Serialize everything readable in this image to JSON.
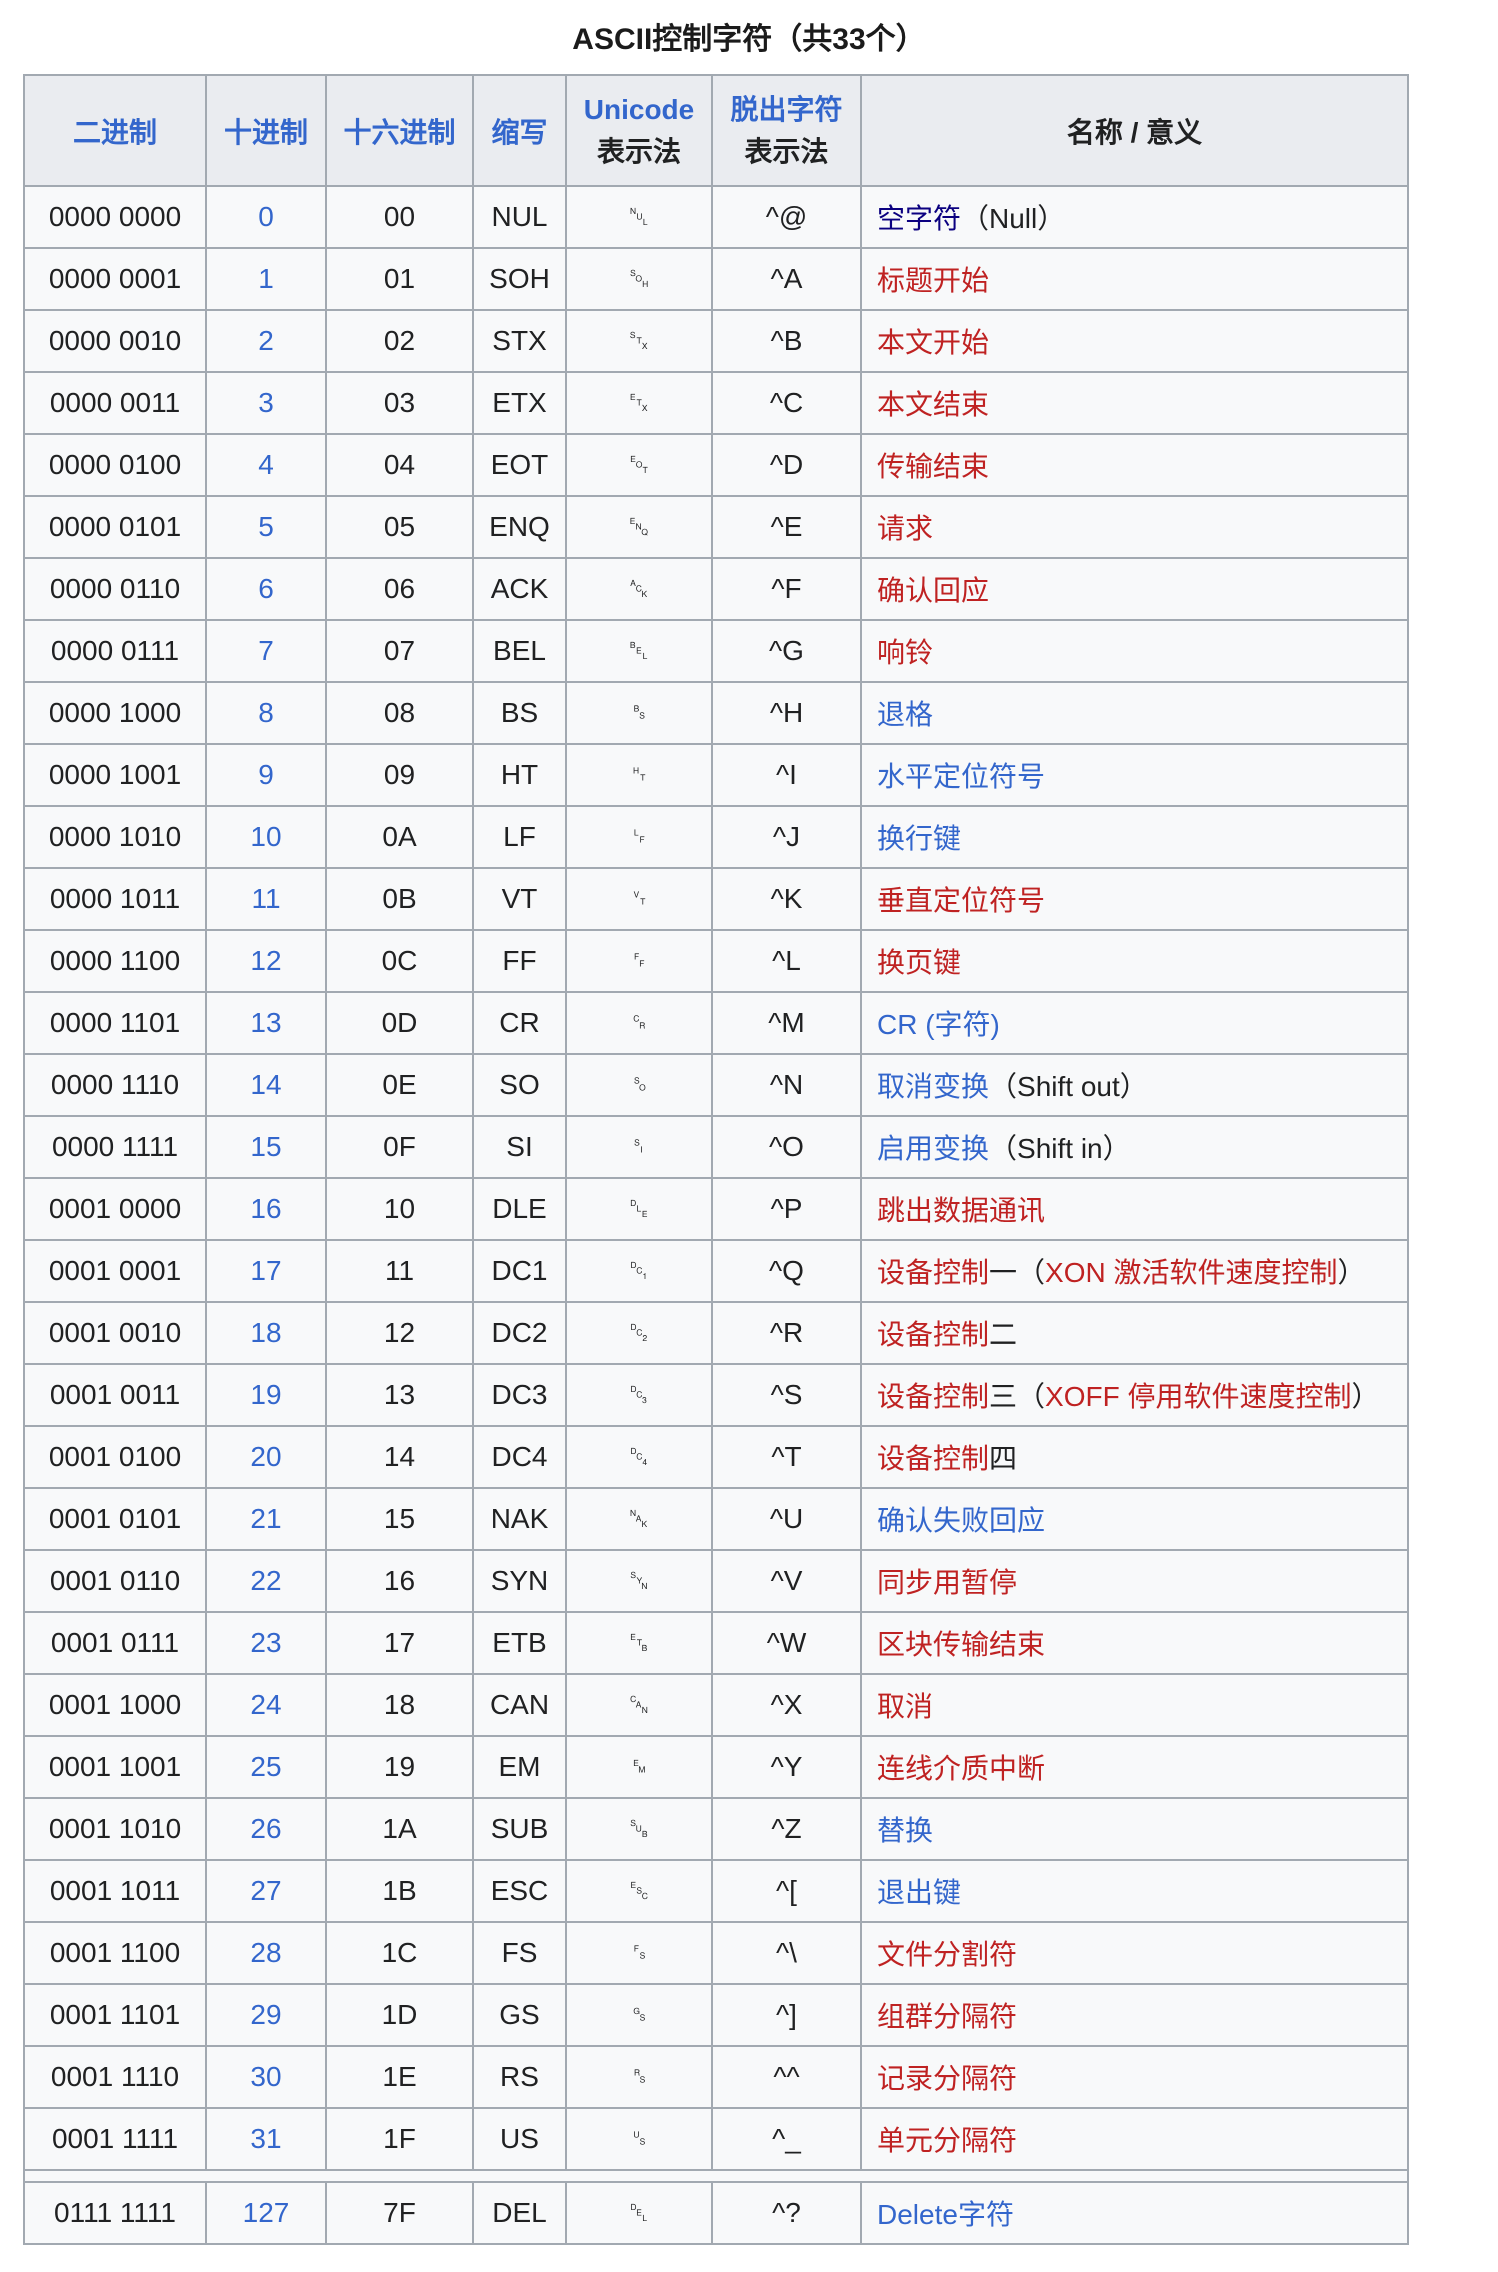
{
  "title": "ASCII控制字符（共33个）",
  "colors": {
    "link": "#3366cc",
    "visited": "#0b0080",
    "red": "#bf2222",
    "text": "#202122",
    "border": "#a2a9b1",
    "header_bg": "#eaecf0",
    "cell_bg": "#f8f9fa"
  },
  "header": {
    "binary": "二进制",
    "decimal": "十进制",
    "hex": "十六进制",
    "abbr": "缩写",
    "unicode_line1": "Unicode",
    "unicode_line2": "表示法",
    "escape_line1": "脱出字符",
    "escape_line2": "表示法",
    "name": "名称 / 意义"
  },
  "rows": [
    {
      "bin": "0000 0000",
      "dec": "0",
      "hex": "00",
      "abbr": "NUL",
      "uni": "␀",
      "esc": "^@",
      "name": [
        {
          "t": "空字符",
          "c": "visited"
        },
        {
          "t": "（Null）",
          "c": "text"
        }
      ]
    },
    {
      "bin": "0000 0001",
      "dec": "1",
      "hex": "01",
      "abbr": "SOH",
      "uni": "␁",
      "esc": "^A",
      "name": [
        {
          "t": "标题开始",
          "c": "red"
        }
      ]
    },
    {
      "bin": "0000 0010",
      "dec": "2",
      "hex": "02",
      "abbr": "STX",
      "uni": "␂",
      "esc": "^B",
      "name": [
        {
          "t": "本文开始",
          "c": "red"
        }
      ]
    },
    {
      "bin": "0000 0011",
      "dec": "3",
      "hex": "03",
      "abbr": "ETX",
      "uni": "␃",
      "esc": "^C",
      "name": [
        {
          "t": "本文结束",
          "c": "red"
        }
      ]
    },
    {
      "bin": "0000 0100",
      "dec": "4",
      "hex": "04",
      "abbr": "EOT",
      "uni": "␄",
      "esc": "^D",
      "name": [
        {
          "t": "传输结束",
          "c": "red"
        }
      ]
    },
    {
      "bin": "0000 0101",
      "dec": "5",
      "hex": "05",
      "abbr": "ENQ",
      "uni": "␅",
      "esc": "^E",
      "name": [
        {
          "t": "请求",
          "c": "red"
        }
      ]
    },
    {
      "bin": "0000 0110",
      "dec": "6",
      "hex": "06",
      "abbr": "ACK",
      "uni": "␆",
      "esc": "^F",
      "name": [
        {
          "t": "确认回应",
          "c": "red"
        }
      ]
    },
    {
      "bin": "0000 0111",
      "dec": "7",
      "hex": "07",
      "abbr": "BEL",
      "uni": "␇",
      "esc": "^G",
      "name": [
        {
          "t": "响铃",
          "c": "red"
        }
      ]
    },
    {
      "bin": "0000 1000",
      "dec": "8",
      "hex": "08",
      "abbr": "BS",
      "uni": "␈",
      "esc": "^H",
      "name": [
        {
          "t": "退格",
          "c": "link"
        }
      ]
    },
    {
      "bin": "0000 1001",
      "dec": "9",
      "hex": "09",
      "abbr": "HT",
      "uni": "␉",
      "esc": "^I",
      "name": [
        {
          "t": "水平定位符号",
          "c": "link"
        }
      ]
    },
    {
      "bin": "0000 1010",
      "dec": "10",
      "hex": "0A",
      "abbr": "LF",
      "uni": "␊",
      "esc": "^J",
      "name": [
        {
          "t": "换行键",
          "c": "link"
        }
      ]
    },
    {
      "bin": "0000 1011",
      "dec": "11",
      "hex": "0B",
      "abbr": "VT",
      "uni": "␋",
      "esc": "^K",
      "name": [
        {
          "t": "垂直定位符号",
          "c": "red"
        }
      ]
    },
    {
      "bin": "0000 1100",
      "dec": "12",
      "hex": "0C",
      "abbr": "FF",
      "uni": "␌",
      "esc": "^L",
      "name": [
        {
          "t": "换页键",
          "c": "red"
        }
      ]
    },
    {
      "bin": "0000 1101",
      "dec": "13",
      "hex": "0D",
      "abbr": "CR",
      "uni": "␍",
      "esc": "^M",
      "name": [
        {
          "t": "CR (字符)",
          "c": "link"
        }
      ]
    },
    {
      "bin": "0000 1110",
      "dec": "14",
      "hex": "0E",
      "abbr": "SO",
      "uni": "␎",
      "esc": "^N",
      "name": [
        {
          "t": "取消变换",
          "c": "link"
        },
        {
          "t": "（Shift out）",
          "c": "text"
        }
      ]
    },
    {
      "bin": "0000 1111",
      "dec": "15",
      "hex": "0F",
      "abbr": "SI",
      "uni": "␏",
      "esc": "^O",
      "name": [
        {
          "t": "启用变换",
          "c": "link"
        },
        {
          "t": "（Shift in）",
          "c": "text"
        }
      ]
    },
    {
      "bin": "0001 0000",
      "dec": "16",
      "hex": "10",
      "abbr": "DLE",
      "uni": "␐",
      "esc": "^P",
      "name": [
        {
          "t": "跳出数据通讯",
          "c": "red"
        }
      ]
    },
    {
      "bin": "0001 0001",
      "dec": "17",
      "hex": "11",
      "abbr": "DC1",
      "uni": "␑",
      "esc": "^Q",
      "name": [
        {
          "t": "设备控制",
          "c": "red"
        },
        {
          "t": "一（",
          "c": "text"
        },
        {
          "t": "XON 激活软件速度控制",
          "c": "red"
        },
        {
          "t": "）",
          "c": "text"
        }
      ]
    },
    {
      "bin": "0001 0010",
      "dec": "18",
      "hex": "12",
      "abbr": "DC2",
      "uni": "␒",
      "esc": "^R",
      "name": [
        {
          "t": "设备控制",
          "c": "red"
        },
        {
          "t": "二",
          "c": "text"
        }
      ]
    },
    {
      "bin": "0001 0011",
      "dec": "19",
      "hex": "13",
      "abbr": "DC3",
      "uni": "␓",
      "esc": "^S",
      "name": [
        {
          "t": "设备控制",
          "c": "red"
        },
        {
          "t": "三（",
          "c": "text"
        },
        {
          "t": "XOFF 停用软件速度控制",
          "c": "red"
        },
        {
          "t": "）",
          "c": "text"
        }
      ]
    },
    {
      "bin": "0001 0100",
      "dec": "20",
      "hex": "14",
      "abbr": "DC4",
      "uni": "␔",
      "esc": "^T",
      "name": [
        {
          "t": "设备控制",
          "c": "red"
        },
        {
          "t": "四",
          "c": "text"
        }
      ]
    },
    {
      "bin": "0001 0101",
      "dec": "21",
      "hex": "15",
      "abbr": "NAK",
      "uni": "␕",
      "esc": "^U",
      "name": [
        {
          "t": "确认失败回应",
          "c": "link"
        }
      ]
    },
    {
      "bin": "0001 0110",
      "dec": "22",
      "hex": "16",
      "abbr": "SYN",
      "uni": "␖",
      "esc": "^V",
      "name": [
        {
          "t": "同步用暂停",
          "c": "red"
        }
      ]
    },
    {
      "bin": "0001 0111",
      "dec": "23",
      "hex": "17",
      "abbr": "ETB",
      "uni": "␗",
      "esc": "^W",
      "name": [
        {
          "t": "区块传输结束",
          "c": "red"
        }
      ]
    },
    {
      "bin": "0001 1000",
      "dec": "24",
      "hex": "18",
      "abbr": "CAN",
      "uni": "␘",
      "esc": "^X",
      "name": [
        {
          "t": "取消",
          "c": "red"
        }
      ]
    },
    {
      "bin": "0001 1001",
      "dec": "25",
      "hex": "19",
      "abbr": "EM",
      "uni": "␙",
      "esc": "^Y",
      "name": [
        {
          "t": "连线介质中断",
          "c": "red"
        }
      ]
    },
    {
      "bin": "0001 1010",
      "dec": "26",
      "hex": "1A",
      "abbr": "SUB",
      "uni": "␚",
      "esc": "^Z",
      "name": [
        {
          "t": "替换",
          "c": "link"
        }
      ]
    },
    {
      "bin": "0001 1011",
      "dec": "27",
      "hex": "1B",
      "abbr": "ESC",
      "uni": "␛",
      "esc": "^[",
      "name": [
        {
          "t": "退出键",
          "c": "link"
        }
      ]
    },
    {
      "bin": "0001 1100",
      "dec": "28",
      "hex": "1C",
      "abbr": "FS",
      "uni": "␜",
      "esc": "^\\",
      "name": [
        {
          "t": "文件分割符",
          "c": "red"
        }
      ]
    },
    {
      "bin": "0001 1101",
      "dec": "29",
      "hex": "1D",
      "abbr": "GS",
      "uni": "␝",
      "esc": "^]",
      "name": [
        {
          "t": "组群分隔符",
          "c": "red"
        }
      ]
    },
    {
      "bin": "0001 1110",
      "dec": "30",
      "hex": "1E",
      "abbr": "RS",
      "uni": "␞",
      "esc": "^^",
      "name": [
        {
          "t": "记录分隔符",
          "c": "red"
        }
      ]
    },
    {
      "bin": "0001 1111",
      "dec": "31",
      "hex": "1F",
      "abbr": "US",
      "uni": "␟",
      "esc": "^_",
      "name": [
        {
          "t": "单元分隔符",
          "c": "red"
        }
      ]
    },
    {
      "sep": true
    },
    {
      "bin": "0111 1111",
      "dec": "127",
      "hex": "7F",
      "abbr": "DEL",
      "uni": "␡",
      "esc": "^?",
      "name": [
        {
          "t": "Delete字符",
          "c": "link"
        }
      ]
    }
  ]
}
